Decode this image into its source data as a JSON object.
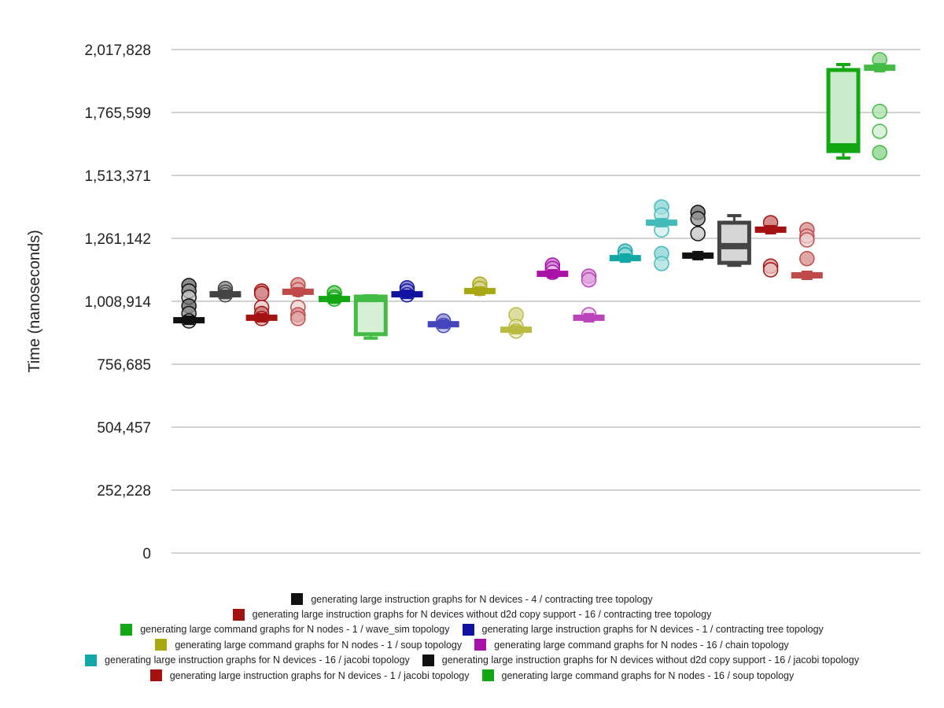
{
  "chart_data": {
    "type": "box",
    "title": "",
    "xlabel": "",
    "ylabel": "Time (nanoseconds)",
    "ylim": [
      0,
      2017828
    ],
    "yticks": [
      "0",
      "252,228",
      "504,457",
      "756,685",
      "1,008,914",
      "1,261,142",
      "1,513,371",
      "1,765,599",
      "2,017,828"
    ],
    "ytick_values": [
      0,
      252228,
      504457,
      756685,
      1008914,
      1261142,
      1513371,
      1765599,
      2017828
    ],
    "grid": true,
    "legend_position": "bottom",
    "series": [
      {
        "name": "generating large instruction graphs for N devices - 4 / contracting tree topology",
        "color": "#111111",
        "groups": [
          {
            "color": "#111111",
            "median": 933000,
            "q1": 933000,
            "q3": 933000,
            "points": [
              1072000,
              1050000,
              1025000,
              990000,
              960000,
              930000
            ]
          },
          {
            "color": "#444444",
            "median": 1037000,
            "q1": 1037000,
            "q3": 1037000,
            "points": [
              1060000,
              1045000,
              1035000
            ]
          }
        ]
      },
      {
        "name": "generating large instruction graphs for N devices without d2d copy support - 16 / contracting tree topology",
        "color": "#a51212",
        "groups": [
          {
            "color": "#a51212",
            "median": 943000,
            "q1": 943000,
            "q3": 943000,
            "points": [
              1050000,
              1040000,
              985000,
              960000,
              940000
            ]
          },
          {
            "color": "#c04949",
            "median": 1047000,
            "q1": 1047000,
            "q3": 1047000,
            "points": [
              1075000,
              1055000,
              985000,
              955000,
              940000
            ]
          }
        ]
      },
      {
        "name": "generating large command graphs for N nodes - 1 / wave_sim topology",
        "color": "#13a813",
        "groups": [
          {
            "color": "#13a813",
            "median": 1018000,
            "q1": 1018000,
            "q3": 1018000,
            "points": [
              1043000,
              1025000,
              1018000
            ]
          },
          {
            "color": "#44bb44",
            "median": 1018000,
            "q1": 877000,
            "q3": 1028000,
            "whisker_low": 861000,
            "whisker_high": 1031000,
            "points": []
          }
        ]
      },
      {
        "name": "generating large instruction graphs for N devices - 1 / contracting tree topology",
        "color": "#1212a0",
        "groups": [
          {
            "color": "#1212a0",
            "median": 1037000,
            "q1": 1037000,
            "q3": 1037000,
            "points": [
              1063000,
              1050000,
              1035000
            ]
          },
          {
            "color": "#4444bb",
            "median": 917000,
            "q1": 917000,
            "q3": 917000,
            "points": [
              930000,
              912000
            ]
          }
        ]
      },
      {
        "name": "generating large command graphs for N nodes - 1 / soup topology",
        "color": "#a8a813",
        "groups": [
          {
            "color": "#a8a813",
            "median": 1050000,
            "q1": 1050000,
            "q3": 1050000,
            "points": [
              1078000,
              1060000
            ]
          },
          {
            "color": "#bbbb44",
            "median": 895000,
            "q1": 895000,
            "q3": 895000,
            "points": [
              955000,
              908000,
              890000
            ]
          }
        ]
      },
      {
        "name": "generating large command graphs for N nodes - 16 / chain topology",
        "color": "#a812a8",
        "groups": [
          {
            "color": "#a812a8",
            "median": 1119000,
            "q1": 1119000,
            "q3": 1119000,
            "points": [
              1154000,
              1140000,
              1125000
            ]
          },
          {
            "color": "#bb44bb",
            "median": 943000,
            "q1": 943000,
            "q3": 943000,
            "points": [
              1110000,
              1095000,
              955000
            ]
          }
        ]
      },
      {
        "name": "generating large instruction graphs for N devices - 16 / jacobi topology",
        "color": "#12a8a8",
        "groups": [
          {
            "color": "#12a8a8",
            "median": 1182000,
            "q1": 1182000,
            "q3": 1182000,
            "points": [
              1210000,
              1195000
            ]
          },
          {
            "color": "#44bbbb",
            "median": 1324000,
            "q1": 1324000,
            "q3": 1324000,
            "points": [
              1387000,
              1355000,
              1295000,
              1200000,
              1160000
            ]
          }
        ]
      },
      {
        "name": "generating large instruction graphs for N devices without d2d copy support - 16 / jacobi topology",
        "color": "#111111",
        "groups": [
          {
            "color": "#111111",
            "median": 1192000,
            "q1": 1192000,
            "q3": 1192000,
            "points": [
              1365000,
              1340000,
              1280000
            ]
          },
          {
            "color": "#444444",
            "median": 1230000,
            "q1": 1163000,
            "q3": 1324000,
            "whisker_low": 1153000,
            "whisker_high": 1352000,
            "points": []
          }
        ]
      },
      {
        "name": "generating large instruction graphs for N devices - 1 / jacobi topology",
        "color": "#a51212",
        "groups": [
          {
            "color": "#a51212",
            "median": 1296000,
            "q1": 1296000,
            "q3": 1296000,
            "points": [
              1324000,
              1150000,
              1135000
            ]
          },
          {
            "color": "#c04949",
            "median": 1113000,
            "q1": 1113000,
            "q3": 1113000,
            "points": [
              1296000,
              1270000,
              1255000,
              1180000
            ]
          }
        ]
      },
      {
        "name": "generating large command graphs for N nodes - 16 / soup topology",
        "color": "#13a813",
        "groups": [
          {
            "color": "#13a813",
            "median": 1630000,
            "q1": 1611000,
            "q3": 1936000,
            "whisker_low": 1583000,
            "whisker_high": 1958000,
            "points": []
          },
          {
            "color": "#44bb44",
            "median": 1945000,
            "q1": 1945000,
            "q3": 1945000,
            "points": [
              1977000,
              1770000,
              1690000,
              1605000
            ]
          }
        ]
      }
    ]
  },
  "legend": {
    "rows": [
      [
        0
      ],
      [
        1
      ],
      [
        2,
        3
      ],
      [
        4,
        5
      ],
      [
        6,
        7
      ],
      [
        8,
        9
      ]
    ]
  }
}
